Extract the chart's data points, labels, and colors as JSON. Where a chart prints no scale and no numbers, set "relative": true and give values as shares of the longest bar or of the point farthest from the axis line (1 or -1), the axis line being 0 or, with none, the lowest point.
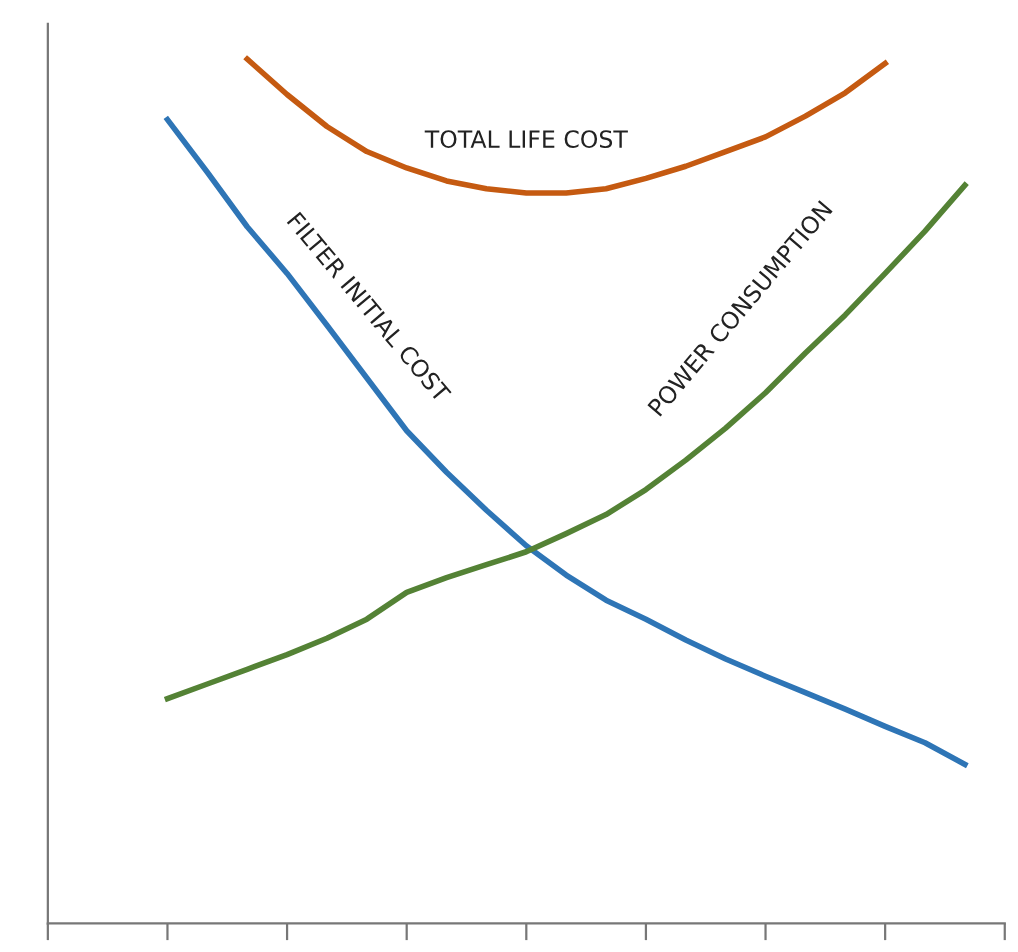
{
  "chart_data": {
    "type": "line",
    "relative": true,
    "categories": [
      null,
      null,
      null,
      null,
      null,
      null,
      null,
      null,
      null,
      null,
      null,
      null,
      null,
      null,
      null,
      null,
      null,
      null,
      null,
      null,
      null,
      null,
      null,
      null,
      null
    ],
    "grid": false,
    "legend": false,
    "marker": "none",
    "line_style": "solid",
    "series": [
      {
        "name": "TOTAL LIFE COST",
        "color": "#c55a11",
        "values": [
          null,
          null,
          null,
          null,
          null,
          1.0,
          0.959,
          0.922,
          0.893,
          0.874,
          0.859,
          0.85,
          0.845,
          0.845,
          0.85,
          0.862,
          0.876,
          0.893,
          0.91,
          0.934,
          0.961,
          0.995,
          null,
          null,
          null
        ]
      },
      {
        "name": "FILTER INITIAL COST",
        "color": "#2e75b6",
        "values": [
          null,
          null,
          null,
          0.93,
          0.869,
          0.806,
          0.752,
          0.692,
          0.631,
          0.57,
          0.522,
          0.478,
          0.437,
          0.403,
          0.374,
          0.352,
          0.328,
          0.306,
          0.286,
          0.267,
          0.248,
          0.228,
          0.209,
          0.184,
          null
        ]
      },
      {
        "name": "POWER CONSUMPTION",
        "color": "#548235",
        "values": [
          null,
          null,
          null,
          0.26,
          0.277,
          0.294,
          0.311,
          0.33,
          0.352,
          0.383,
          0.4,
          0.415,
          0.43,
          0.451,
          0.473,
          0.502,
          0.536,
          0.573,
          0.614,
          0.66,
          0.704,
          0.752,
          0.801,
          0.854,
          null
        ]
      }
    ]
  }
}
